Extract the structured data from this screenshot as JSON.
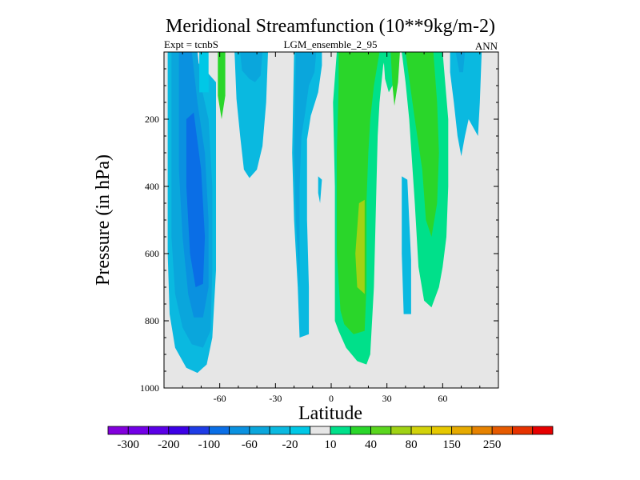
{
  "chart_data": {
    "type": "contour",
    "title": "Meridional Streamfunction (10**9kg/m-2)",
    "left_label": "Expt = tcnbS",
    "center_label": "LGM_ensemble_2_95",
    "right_label": "ANN",
    "xlabel": "Latitude",
    "ylabel": "Pressure (in hPa)",
    "xlim": [
      -90,
      90
    ],
    "ylim": [
      0,
      1000
    ],
    "y_inverted": true,
    "x_ticks": [
      "-60",
      "-30",
      "0",
      "30",
      "60"
    ],
    "x_tick_values": [
      -60,
      -30,
      0,
      30,
      60
    ],
    "y_ticks": [
      "200",
      "400",
      "600",
      "800",
      "1000"
    ],
    "y_tick_values": [
      200,
      400,
      600,
      800,
      1000
    ],
    "background_color": "#e6e6e6",
    "colorbar": {
      "colors": [
        "#8200dc",
        "#7200e6",
        "#5a00e6",
        "#3c00e6",
        "#1e3ce6",
        "#0a6ee6",
        "#0a91e0",
        "#0aa6dc",
        "#0ab9e0",
        "#00c8e6",
        "#e6e6e6",
        "#00e08a",
        "#2ad62a",
        "#5ad61e",
        "#a0d214",
        "#d2d20a",
        "#e6c800",
        "#e6aa00",
        "#e68200",
        "#e65a00",
        "#e63200",
        "#e60000"
      ],
      "labels": [
        "-300",
        "-200",
        "-100",
        "-60",
        "-20",
        "10",
        "40",
        "80",
        "150",
        "250"
      ]
    },
    "regions": [
      {
        "color": "#0ab9e0",
        "points": [
          [
            -88,
            0
          ],
          [
            -74,
            0
          ],
          [
            -72,
            30
          ],
          [
            -66,
            65
          ],
          [
            -62,
            90
          ],
          [
            -62,
            300
          ],
          [
            -62,
            650
          ],
          [
            -64,
            850
          ],
          [
            -67,
            930
          ],
          [
            -72,
            955
          ],
          [
            -78,
            940
          ],
          [
            -84,
            880
          ],
          [
            -87,
            780
          ],
          [
            -88,
            600
          ]
        ]
      },
      {
        "color": "#0aa6dc",
        "points": [
          [
            -86,
            0
          ],
          [
            -72,
            0
          ],
          [
            -70,
            100
          ],
          [
            -66,
            200
          ],
          [
            -64,
            400
          ],
          [
            -64,
            650
          ],
          [
            -65,
            830
          ],
          [
            -69,
            880
          ],
          [
            -75,
            870
          ],
          [
            -80,
            820
          ],
          [
            -84,
            720
          ],
          [
            -86,
            550
          ]
        ]
      },
      {
        "color": "#0a91e0",
        "points": [
          [
            -82,
            0
          ],
          [
            -75,
            0
          ],
          [
            -72,
            150
          ],
          [
            -68,
            300
          ],
          [
            -66,
            500
          ],
          [
            -66,
            700
          ],
          [
            -69,
            790
          ],
          [
            -74,
            790
          ],
          [
            -77,
            720
          ],
          [
            -80,
            550
          ],
          [
            -82,
            350
          ]
        ]
      },
      {
        "color": "#0a6ee6",
        "points": [
          [
            -78,
            200
          ],
          [
            -74,
            180
          ],
          [
            -70,
            350
          ],
          [
            -68,
            550
          ],
          [
            -69,
            690
          ],
          [
            -73,
            700
          ],
          [
            -76,
            600
          ],
          [
            -78,
            400
          ]
        ]
      },
      {
        "color": "#00c8e6",
        "points": [
          [
            -71,
            0
          ],
          [
            -66,
            0
          ],
          [
            -66,
            120
          ],
          [
            -71,
            120
          ]
        ]
      },
      {
        "color": "#2ad62a",
        "points": [
          [
            -61,
            0
          ],
          [
            -57,
            0
          ],
          [
            -57,
            130
          ],
          [
            -59,
            200
          ],
          [
            -61,
            130
          ]
        ]
      },
      {
        "color": "#0ab9e0",
        "points": [
          [
            -52,
            0
          ],
          [
            -34,
            0
          ],
          [
            -35,
            150
          ],
          [
            -37,
            280
          ],
          [
            -40,
            350
          ],
          [
            -44,
            375
          ],
          [
            -47,
            350
          ],
          [
            -49,
            250
          ],
          [
            -51,
            140
          ]
        ]
      },
      {
        "color": "#0aa6dc",
        "points": [
          [
            -49,
            0
          ],
          [
            -37,
            0
          ],
          [
            -38,
            70
          ],
          [
            -41,
            90
          ],
          [
            -44,
            80
          ],
          [
            -48,
            55
          ]
        ]
      },
      {
        "color": "#0ab9e0",
        "points": [
          [
            -20,
            0
          ],
          [
            -5,
            0
          ],
          [
            -5,
            40
          ],
          [
            -7,
            120
          ],
          [
            -11,
            190
          ],
          [
            -13,
            260
          ],
          [
            -13,
            500
          ],
          [
            -12,
            700
          ],
          [
            -12,
            840
          ],
          [
            -17,
            850
          ],
          [
            -18,
            700
          ],
          [
            -20,
            500
          ],
          [
            -21,
            300
          ]
        ]
      },
      {
        "color": "#0aa6dc",
        "points": [
          [
            -19,
            0
          ],
          [
            -8,
            0
          ],
          [
            -9,
            60
          ],
          [
            -12,
            100
          ],
          [
            -14,
            180
          ],
          [
            -16,
            250
          ],
          [
            -17,
            400
          ],
          [
            -17,
            550
          ],
          [
            -17,
            700
          ],
          [
            -19,
            500
          ],
          [
            -20,
            300
          ]
        ]
      },
      {
        "color": "#00e08a",
        "points": [
          [
            3,
            0
          ],
          [
            30,
            0
          ],
          [
            28,
            40
          ],
          [
            26,
            150
          ],
          [
            25,
            250
          ],
          [
            23,
            700
          ],
          [
            21,
            900
          ],
          [
            19,
            930
          ],
          [
            14,
            920
          ],
          [
            8,
            880
          ],
          [
            4,
            830
          ],
          [
            2,
            800
          ],
          [
            2,
            400
          ],
          [
            1,
            150
          ]
        ]
      },
      {
        "color": "#2ad62a",
        "points": [
          [
            4,
            0
          ],
          [
            26,
            0
          ],
          [
            23,
            100
          ],
          [
            21,
            200
          ],
          [
            20,
            300
          ],
          [
            19,
            450
          ],
          [
            19,
            700
          ],
          [
            18,
            830
          ],
          [
            12,
            840
          ],
          [
            7,
            810
          ],
          [
            5,
            770
          ],
          [
            3,
            600
          ],
          [
            3,
            300
          ],
          [
            4,
            100
          ]
        ]
      },
      {
        "color": "#a0d214",
        "points": [
          [
            15,
            450
          ],
          [
            18,
            440
          ],
          [
            18,
            720
          ],
          [
            14,
            700
          ],
          [
            13,
            600
          ]
        ]
      },
      {
        "color": "#00e08a",
        "points": [
          [
            28,
            0
          ],
          [
            34,
            0
          ],
          [
            33,
            100
          ],
          [
            31,
            120
          ],
          [
            29,
            80
          ]
        ]
      },
      {
        "color": "#2ad62a",
        "points": [
          [
            32,
            0
          ],
          [
            37,
            0
          ],
          [
            36,
            90
          ],
          [
            34,
            160
          ],
          [
            33,
            100
          ]
        ]
      },
      {
        "color": "#00e08a",
        "points": [
          [
            38,
            0
          ],
          [
            60,
            0
          ],
          [
            63,
            200
          ],
          [
            63,
            400
          ],
          [
            62,
            550
          ],
          [
            60,
            640
          ],
          [
            58,
            700
          ],
          [
            54,
            760
          ],
          [
            50,
            740
          ],
          [
            47,
            640
          ],
          [
            45,
            450
          ],
          [
            42,
            200
          ],
          [
            40,
            90
          ]
        ]
      },
      {
        "color": "#2ad62a",
        "points": [
          [
            40,
            0
          ],
          [
            55,
            0
          ],
          [
            57,
            150
          ],
          [
            58,
            300
          ],
          [
            57,
            450
          ],
          [
            54,
            550
          ],
          [
            51,
            500
          ],
          [
            49,
            350
          ],
          [
            45,
            200
          ],
          [
            42,
            80
          ]
        ]
      },
      {
        "color": "#0ab9e0",
        "points": [
          [
            38,
            370
          ],
          [
            41,
            380
          ],
          [
            42,
            500
          ],
          [
            43,
            620
          ],
          [
            43,
            780
          ],
          [
            39,
            780
          ],
          [
            38,
            600
          ]
        ]
      },
      {
        "color": "#0ab9e0",
        "points": [
          [
            64,
            0
          ],
          [
            81,
            0
          ],
          [
            80,
            150
          ],
          [
            79,
            250
          ],
          [
            77,
            230
          ],
          [
            74,
            200
          ],
          [
            72,
            250
          ],
          [
            70,
            310
          ],
          [
            68,
            250
          ],
          [
            66,
            150
          ],
          [
            64,
            60
          ]
        ]
      },
      {
        "color": "#0aa6dc",
        "points": [
          [
            67,
            0
          ],
          [
            72,
            0
          ],
          [
            71,
            60
          ],
          [
            69,
            60
          ]
        ]
      },
      {
        "color": "#0ab9e0",
        "points": [
          [
            -7,
            370
          ],
          [
            -5,
            380
          ],
          [
            -6,
            450
          ],
          [
            -7,
            420
          ]
        ]
      }
    ]
  }
}
